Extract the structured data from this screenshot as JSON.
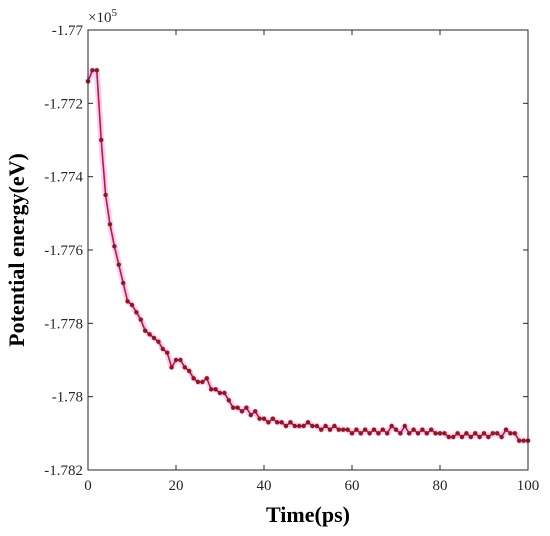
{
  "chart_data": {
    "type": "line",
    "xlabel": "Time(ps)",
    "ylabel": "Potential energy(eV)",
    "y_multiplier_base": "×10",
    "y_multiplier_exp": "5",
    "xlim": [
      0,
      100
    ],
    "ylim": [
      -1.782,
      -1.77
    ],
    "x_ticks": [
      0,
      20,
      40,
      60,
      80,
      100
    ],
    "x_tick_labels": [
      "0",
      "20",
      "40",
      "60",
      "80",
      "100"
    ],
    "y_ticks": [
      -1.782,
      -1.78,
      -1.778,
      -1.776,
      -1.774,
      -1.772,
      -1.77
    ],
    "y_tick_labels": [
      "-1.782",
      "-1.78",
      "-1.778",
      "-1.776",
      "-1.774",
      "-1.772",
      "-1.77"
    ],
    "grid": false,
    "colors": {
      "line": "#b22222",
      "marker": "#8b1a1a",
      "glow": "#ff66ff",
      "axis": "#262626"
    },
    "series": [
      {
        "x": [
          0,
          1,
          2,
          3,
          4,
          5,
          6,
          7,
          8,
          9,
          10,
          11,
          12,
          13,
          14,
          15,
          16,
          17,
          18,
          19,
          20,
          21,
          22,
          23,
          24,
          25,
          26,
          27,
          28,
          29,
          30,
          31,
          32,
          33,
          34,
          35,
          36,
          37,
          38,
          39,
          40,
          41,
          42,
          43,
          44,
          45,
          46,
          47,
          48,
          49,
          50,
          51,
          52,
          53,
          54,
          55,
          56,
          57,
          58,
          59,
          60,
          61,
          62,
          63,
          64,
          65,
          66,
          67,
          68,
          69,
          70,
          71,
          72,
          73,
          74,
          75,
          76,
          77,
          78,
          79,
          80,
          81,
          82,
          83,
          84,
          85,
          86,
          87,
          88,
          89,
          90,
          91,
          92,
          93,
          94,
          95,
          96,
          97,
          98,
          99,
          100
        ],
        "y": [
          -1.7714,
          -1.7711,
          -1.7711,
          -1.773,
          -1.7745,
          -1.7753,
          -1.7759,
          -1.7764,
          -1.7769,
          -1.7774,
          -1.7775,
          -1.7777,
          -1.7779,
          -1.7782,
          -1.7783,
          -1.7784,
          -1.7785,
          -1.7787,
          -1.7788,
          -1.7792,
          -1.779,
          -1.779,
          -1.7792,
          -1.7793,
          -1.7795,
          -1.7796,
          -1.7796,
          -1.7795,
          -1.7798,
          -1.7798,
          -1.7799,
          -1.7799,
          -1.7801,
          -1.7803,
          -1.7803,
          -1.7804,
          -1.7803,
          -1.7805,
          -1.7804,
          -1.7806,
          -1.7806,
          -1.7807,
          -1.7806,
          -1.7807,
          -1.7807,
          -1.7808,
          -1.7807,
          -1.7808,
          -1.7808,
          -1.7808,
          -1.7807,
          -1.7808,
          -1.7808,
          -1.7809,
          -1.7808,
          -1.7809,
          -1.7808,
          -1.7809,
          -1.7809,
          -1.7809,
          -1.781,
          -1.7809,
          -1.781,
          -1.7809,
          -1.781,
          -1.7809,
          -1.781,
          -1.7809,
          -1.781,
          -1.7808,
          -1.7809,
          -1.781,
          -1.7808,
          -1.781,
          -1.7809,
          -1.781,
          -1.7809,
          -1.781,
          -1.7809,
          -1.781,
          -1.781,
          -1.781,
          -1.7811,
          -1.7811,
          -1.781,
          -1.7811,
          -1.781,
          -1.7811,
          -1.781,
          -1.7811,
          -1.781,
          -1.7811,
          -1.781,
          -1.781,
          -1.7811,
          -1.7809,
          -1.781,
          -1.781,
          -1.7812,
          -1.7812,
          -1.7812
        ]
      }
    ]
  }
}
